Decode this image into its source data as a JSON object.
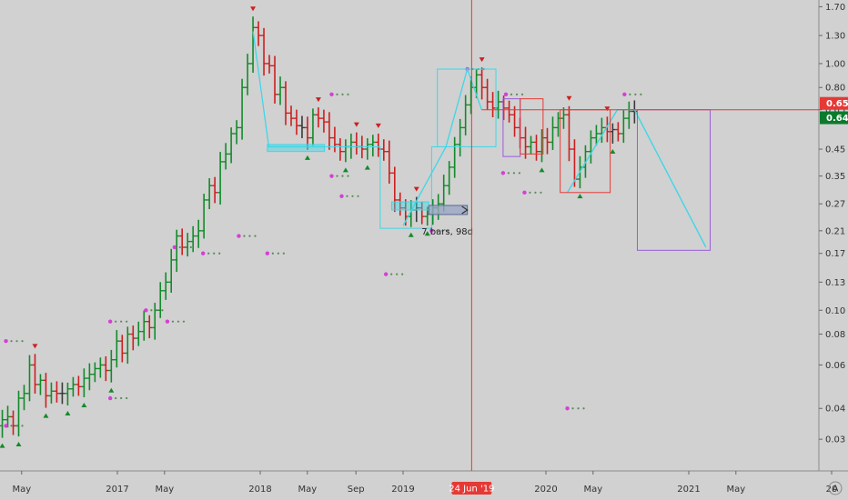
{
  "chart_data": {
    "type": "bar",
    "style": "ohlc-bars",
    "y_scale": "log",
    "ylim": [
      0.026,
      1.75
    ],
    "y_ticks": [
      "1.70",
      "1.30",
      "1.00",
      "0.80",
      "0.65",
      "0.45",
      "0.35",
      "0.27",
      "0.21",
      "0.17",
      "0.13",
      "0.10",
      "0.08",
      "0.06",
      "0.04",
      "0.03"
    ],
    "x_labels": [
      {
        "t": 2016.33,
        "label": "May"
      },
      {
        "t": 2017.0,
        "label": "2017"
      },
      {
        "t": 2017.33,
        "label": "May"
      },
      {
        "t": 2018.0,
        "label": "2018"
      },
      {
        "t": 2018.33,
        "label": "May"
      },
      {
        "t": 2018.67,
        "label": "Sep"
      },
      {
        "t": 2019.0,
        "label": "2019"
      },
      {
        "t": 2020.0,
        "label": "2020"
      },
      {
        "t": 2020.33,
        "label": "May"
      },
      {
        "t": 2021.0,
        "label": "2021"
      },
      {
        "t": 2021.33,
        "label": "May"
      },
      {
        "t": 2022.0,
        "label": "20"
      }
    ],
    "crosshair": {
      "t": 2019.48,
      "label": "24 Jun '19"
    },
    "price_labels": [
      {
        "value": 0.65,
        "label": "0.65",
        "color": "#e53935"
      },
      {
        "value": 0.64,
        "label": "0.64",
        "color": "#0b7a2c"
      }
    ],
    "measure_label": "7 bars, 98d",
    "axis_corner_label": "A",
    "colors": {
      "up": "#138a2a",
      "down": "#cc1f1f",
      "neutral": "#3a3a3a",
      "cyan": "#3fd6e6",
      "purple": "#9a5bd8",
      "red": "#e53935",
      "dots": "#d63fd6"
    },
    "closes": [
      0.035,
      0.034,
      0.034,
      0.036,
      0.037,
      0.034,
      0.044,
      0.046,
      0.06,
      0.05,
      0.052,
      0.045,
      0.047,
      0.046,
      0.046,
      0.048,
      0.05,
      0.049,
      0.053,
      0.055,
      0.058,
      0.06,
      0.057,
      0.063,
      0.075,
      0.067,
      0.08,
      0.077,
      0.082,
      0.09,
      0.085,
      0.1,
      0.12,
      0.13,
      0.16,
      0.2,
      0.18,
      0.19,
      0.2,
      0.21,
      0.28,
      0.32,
      0.3,
      0.4,
      0.43,
      0.52,
      0.55,
      0.8,
      1.0,
      1.4,
      1.3,
      1.0,
      0.98,
      0.75,
      0.8,
      0.63,
      0.6,
      0.56,
      0.55,
      0.5,
      0.62,
      0.6,
      0.58,
      0.5,
      0.47,
      0.44,
      0.46,
      0.48,
      0.46,
      0.45,
      0.47,
      0.48,
      0.45,
      0.44,
      0.36,
      0.28,
      0.26,
      0.24,
      0.255,
      0.26,
      0.24,
      0.245,
      0.26,
      0.27,
      0.32,
      0.38,
      0.47,
      0.55,
      0.68,
      0.8,
      0.9,
      0.8,
      0.7,
      0.66,
      0.7,
      0.66,
      0.62,
      0.55,
      0.5,
      0.46,
      0.48,
      0.44,
      0.5,
      0.48,
      0.55,
      0.6,
      0.62,
      0.45,
      0.34,
      0.38,
      0.44,
      0.5,
      0.52,
      0.55,
      0.53,
      0.54,
      0.52,
      0.6,
      0.64,
      0.64
    ]
  }
}
